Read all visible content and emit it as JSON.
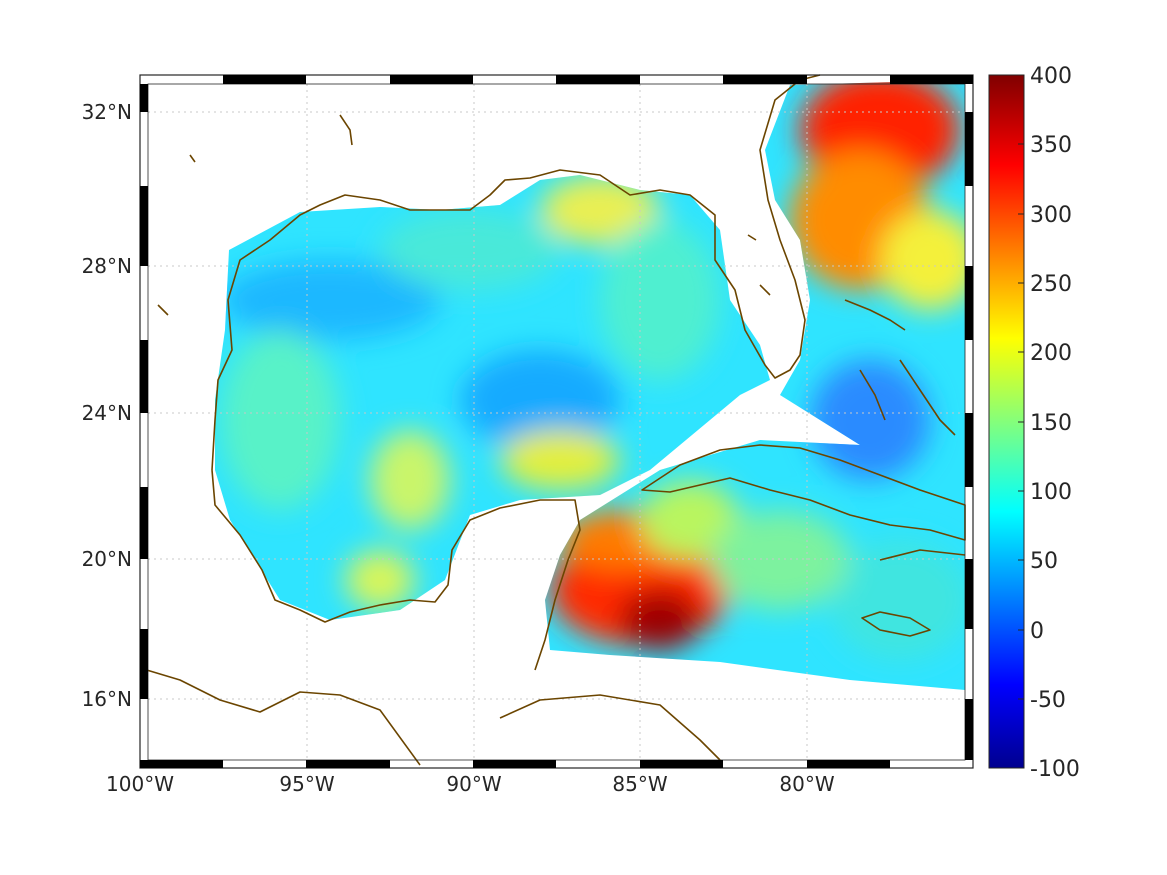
{
  "map": {
    "projection": "mercator",
    "lon_range": [
      -100,
      -75
    ],
    "lat_range": [
      14.3,
      33
    ],
    "grid": true,
    "coastline_color": "#6b4500",
    "x_ticks": [
      {
        "value": -100,
        "label": "100°W"
      },
      {
        "value": -95,
        "label": "95°W"
      },
      {
        "value": -90,
        "label": "90°W"
      },
      {
        "value": -85,
        "label": "85°W"
      },
      {
        "value": -80,
        "label": "80°W"
      }
    ],
    "y_ticks": [
      {
        "value": 32,
        "label": "32°N"
      },
      {
        "value": 28,
        "label": "28°N"
      },
      {
        "value": 24,
        "label": "24°N"
      },
      {
        "value": 20,
        "label": "20°N"
      },
      {
        "value": 16,
        "label": "16°N"
      }
    ]
  },
  "colorbar": {
    "colormap": "jet",
    "range": [
      -100,
      400
    ],
    "ticks": [
      "400",
      "350",
      "300",
      "250",
      "200",
      "150",
      "100",
      "50",
      "0",
      "-50",
      "-100"
    ]
  },
  "features": {
    "gulf_of_mexico_level": "low (light blue, ~75-125)",
    "yucatan_channel_level": "high (red, ~300-380)",
    "atlantic_northeast_level": "high (orange-red, ~250-350)",
    "caribbean_level": "low-medium (cyan, ~75-150)"
  }
}
